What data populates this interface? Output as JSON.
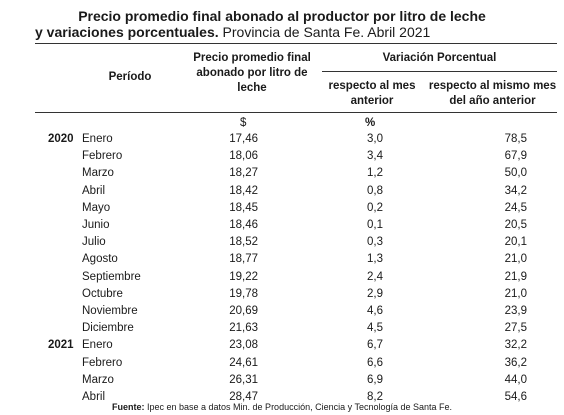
{
  "title": {
    "line1": "Precio promedio final abonado al productor por litro de leche",
    "line2_bold": "y variaciones porcentuales.",
    "line2_rest": " Provincia de Santa Fe. Abril 2021"
  },
  "headers": {
    "periodo": "Período",
    "precio": "Precio promedio final abonado por litro de leche",
    "variacion": "Variación Porcentual",
    "mes_anterior": "respecto al mes anterior",
    "anio_anterior": "respecto al mismo mes del año anterior"
  },
  "units": {
    "precio": "$",
    "pct": "%"
  },
  "rows": [
    {
      "year": "2020",
      "month": "Enero",
      "precio": "17,46",
      "var_mes": "3,0",
      "var_anio": "78,5"
    },
    {
      "year": "",
      "month": "Febrero",
      "precio": "18,06",
      "var_mes": "3,4",
      "var_anio": "67,9"
    },
    {
      "year": "",
      "month": "Marzo",
      "precio": "18,27",
      "var_mes": "1,2",
      "var_anio": "50,0"
    },
    {
      "year": "",
      "month": "Abril",
      "precio": "18,42",
      "var_mes": "0,8",
      "var_anio": "34,2"
    },
    {
      "year": "",
      "month": "Mayo",
      "precio": "18,45",
      "var_mes": "0,2",
      "var_anio": "24,5"
    },
    {
      "year": "",
      "month": "Junio",
      "precio": "18,46",
      "var_mes": "0,1",
      "var_anio": "20,5"
    },
    {
      "year": "",
      "month": "Julio",
      "precio": "18,52",
      "var_mes": "0,3",
      "var_anio": "20,1"
    },
    {
      "year": "",
      "month": "Agosto",
      "precio": "18,77",
      "var_mes": "1,3",
      "var_anio": "21,0"
    },
    {
      "year": "",
      "month": "Septiembre",
      "precio": "19,22",
      "var_mes": "2,4",
      "var_anio": "21,9"
    },
    {
      "year": "",
      "month": "Octubre",
      "precio": "19,78",
      "var_mes": "2,9",
      "var_anio": "21,0"
    },
    {
      "year": "",
      "month": "Noviembre",
      "precio": "20,69",
      "var_mes": "4,6",
      "var_anio": "23,9"
    },
    {
      "year": "",
      "month": "Diciembre",
      "precio": "21,63",
      "var_mes": "4,5",
      "var_anio": "27,5"
    },
    {
      "year": "2021",
      "month": "Enero",
      "precio": "23,08",
      "var_mes": "6,7",
      "var_anio": "32,2"
    },
    {
      "year": "",
      "month": "Febrero",
      "precio": "24,61",
      "var_mes": "6,6",
      "var_anio": "36,2"
    },
    {
      "year": "",
      "month": "Marzo",
      "precio": "26,31",
      "var_mes": "6,9",
      "var_anio": "44,0"
    },
    {
      "year": "",
      "month": "Abril",
      "precio": "28,47",
      "var_mes": "8,2",
      "var_anio": "54,6"
    }
  ],
  "footnote": {
    "label": "Fuente:",
    "text": " Ipec en base a datos Min. de Producción, Ciencia y Tecnología de Santa Fe."
  }
}
